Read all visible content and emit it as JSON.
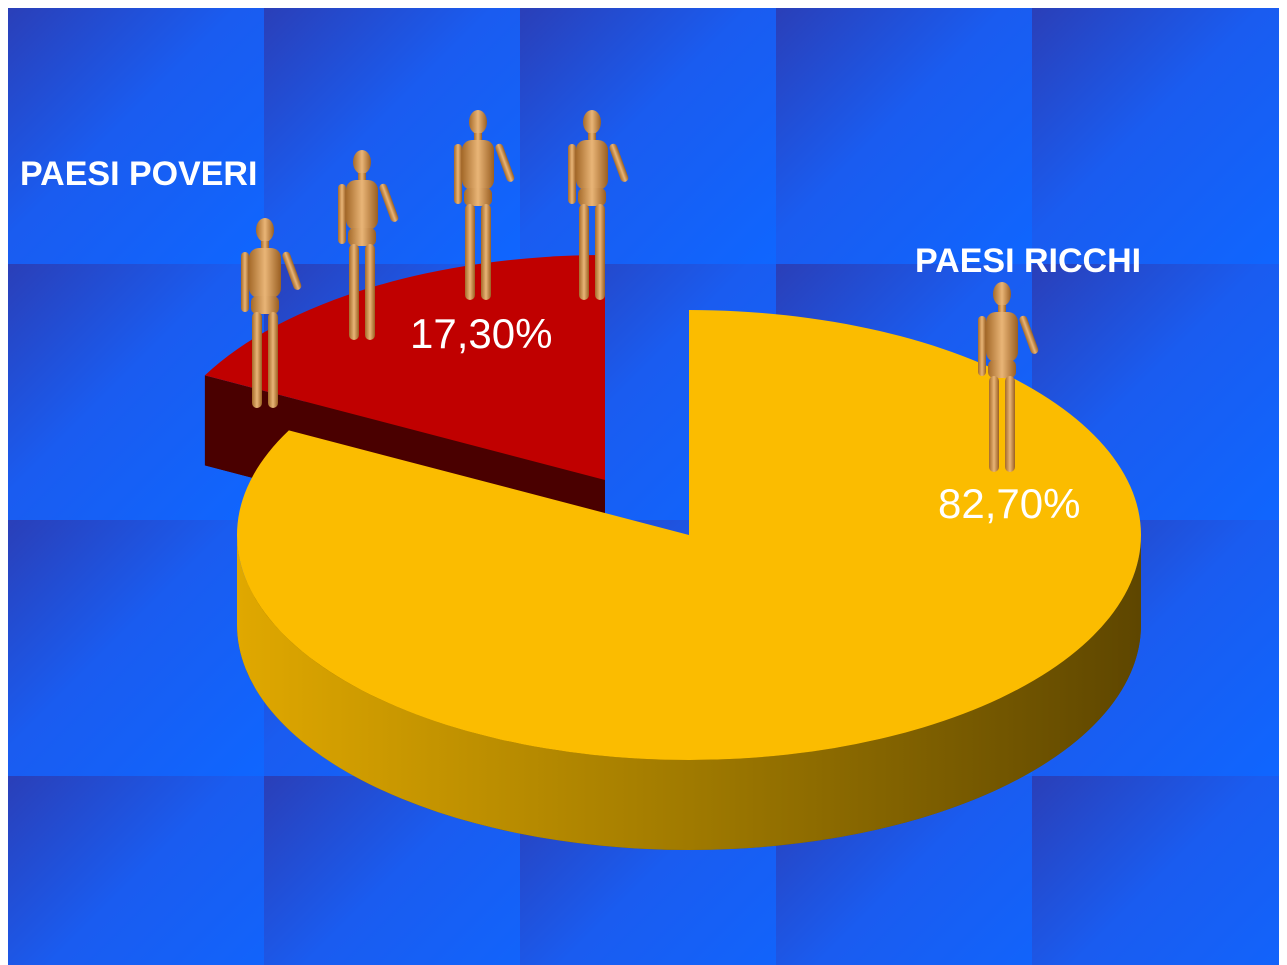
{
  "chart_data": {
    "type": "pie",
    "categories": [
      "PAESI POVERI",
      "PAESI RICCHI"
    ],
    "values": [
      17.3,
      82.7
    ],
    "value_labels": [
      "17,30%",
      "82,70%"
    ],
    "colors": [
      "#c00000",
      "#fbbc00"
    ]
  }
}
